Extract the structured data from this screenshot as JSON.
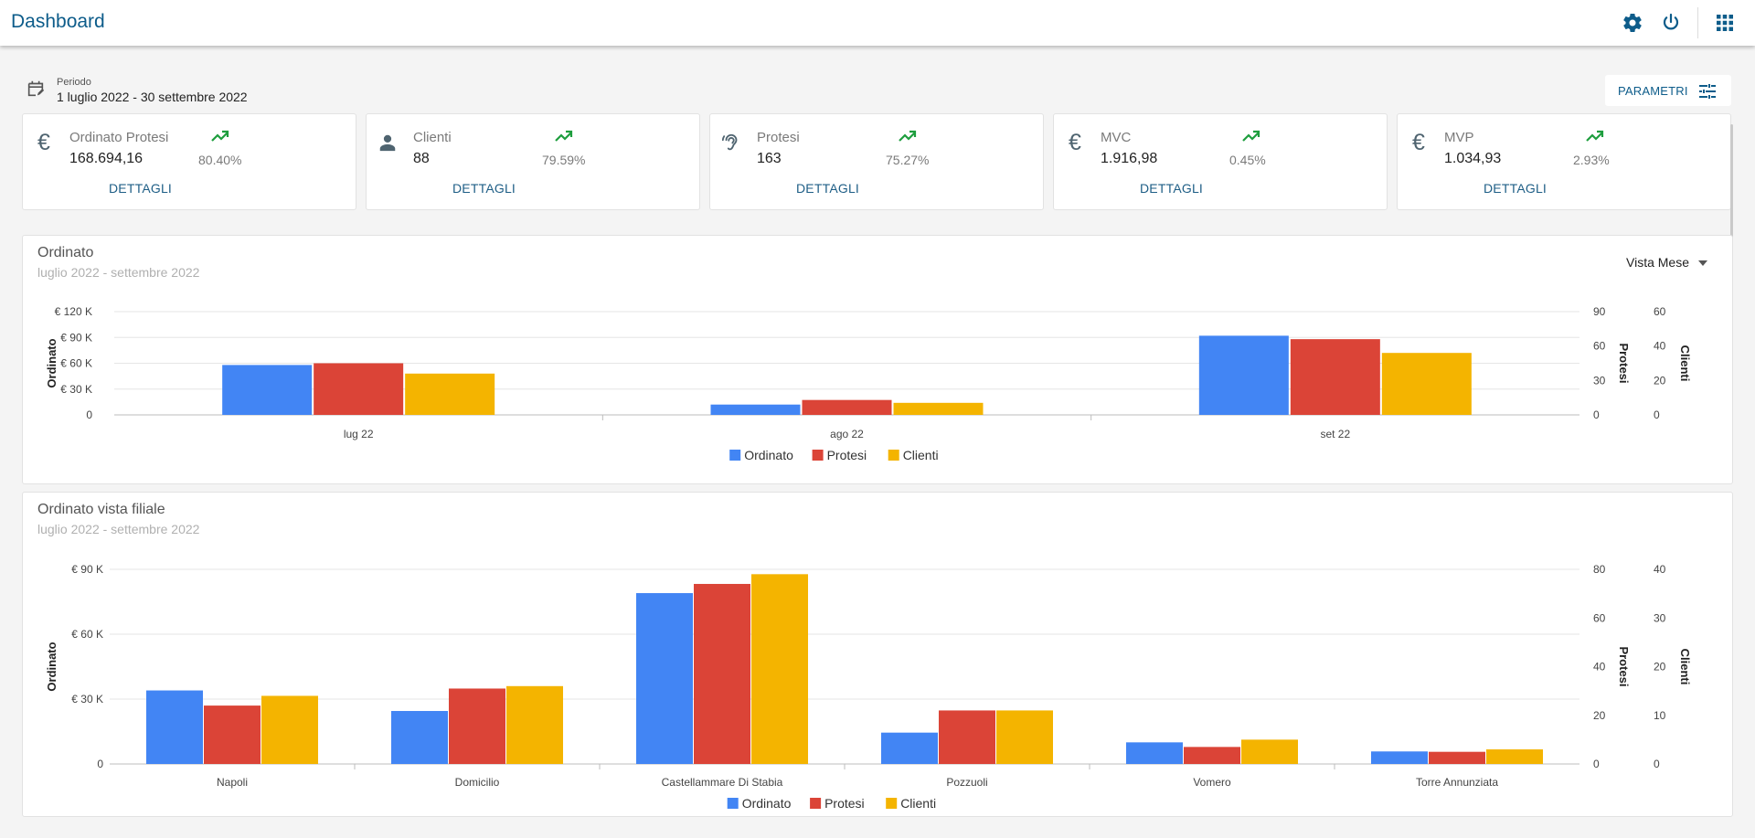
{
  "header": {
    "title": "Dashboard",
    "icons": [
      "gear-icon",
      "power-icon",
      "apps-grid-icon"
    ]
  },
  "period": {
    "label": "Periodo",
    "value": "1 luglio 2022 - 30 settembre 2022"
  },
  "params_button": {
    "label": "PARAMETRI"
  },
  "kpis": [
    {
      "icon": "euro-icon",
      "label": "Ordinato Protesi",
      "value": "168.694,16",
      "pct": "80.40%",
      "link": "DETTAGLI"
    },
    {
      "icon": "person-icon",
      "label": "Clienti",
      "value": "88",
      "pct": "79.59%",
      "link": "DETTAGLI"
    },
    {
      "icon": "hearing-icon",
      "label": "Protesi",
      "value": "163",
      "pct": "75.27%",
      "link": "DETTAGLI"
    },
    {
      "icon": "euro-icon",
      "label": "MVC",
      "value": "1.916,98",
      "pct": "0.45%",
      "link": "DETTAGLI"
    },
    {
      "icon": "euro-icon",
      "label": "MVP",
      "value": "1.034,93",
      "pct": "2.93%",
      "link": "DETTAGLI"
    }
  ],
  "colors": {
    "ordinato": "#4285f4",
    "protesi": "#db4437",
    "clienti": "#f4b400",
    "trend": "#1e9e3e",
    "accent": "#0d5c8a"
  },
  "chart1": {
    "title": "Ordinato",
    "subtitle": "luglio 2022 - settembre 2022",
    "view_select": "Vista Mese"
  },
  "chart2": {
    "title": "Ordinato vista filiale",
    "subtitle": "luglio 2022 - settembre 2022"
  },
  "chart_data": [
    {
      "type": "bar",
      "title": "Ordinato",
      "categories": [
        "lug 22",
        "ago 22",
        "set 22"
      ],
      "axes": [
        {
          "name": "Ordinato",
          "side": "left",
          "ylim": [
            0,
            120000
          ],
          "ticks": [
            "0",
            "€ 30 K",
            "€ 60 K",
            "€ 90 K",
            "€ 120 K"
          ]
        },
        {
          "name": "Protesi",
          "side": "right",
          "ylim": [
            0,
            90
          ],
          "ticks": [
            "0",
            "30",
            "60",
            "90"
          ]
        },
        {
          "name": "Clienti",
          "side": "right",
          "ylim": [
            0,
            60
          ],
          "ticks": [
            "0",
            "20",
            "40",
            "60"
          ]
        }
      ],
      "series": [
        {
          "name": "Ordinato",
          "axis": 0,
          "values": [
            58000,
            12000,
            92000
          ]
        },
        {
          "name": "Protesi",
          "axis": 1,
          "values": [
            45,
            13,
            66
          ]
        },
        {
          "name": "Clienti",
          "axis": 2,
          "values": [
            24,
            7,
            36
          ]
        }
      ],
      "legend": "bottom",
      "grid": true
    },
    {
      "type": "bar",
      "title": "Ordinato vista filiale",
      "categories": [
        "Napoli",
        "Domicilio",
        "Castellammare Di Stabia",
        "Pozzuoli",
        "Vomero",
        "Torre Annunziata"
      ],
      "axes": [
        {
          "name": "Ordinato",
          "side": "left",
          "ylim": [
            0,
            90000
          ],
          "ticks": [
            "0",
            "€ 30 K",
            "€ 60 K",
            "€ 90 K"
          ]
        },
        {
          "name": "Protesi",
          "side": "right",
          "ylim": [
            0,
            80
          ],
          "ticks": [
            "0",
            "20",
            "40",
            "60",
            "80"
          ]
        },
        {
          "name": "Clienti",
          "side": "right",
          "ylim": [
            0,
            40
          ],
          "ticks": [
            "0",
            "10",
            "20",
            "30",
            "40"
          ]
        }
      ],
      "series": [
        {
          "name": "Ordinato",
          "axis": 0,
          "values": [
            34000,
            24500,
            79000,
            14500,
            10000,
            5800
          ]
        },
        {
          "name": "Protesi",
          "axis": 1,
          "values": [
            24,
            31,
            74,
            22,
            7,
            5
          ]
        },
        {
          "name": "Clienti",
          "axis": 2,
          "values": [
            14,
            16,
            39,
            11,
            5,
            3
          ]
        }
      ],
      "legend": "bottom",
      "grid": true
    }
  ]
}
